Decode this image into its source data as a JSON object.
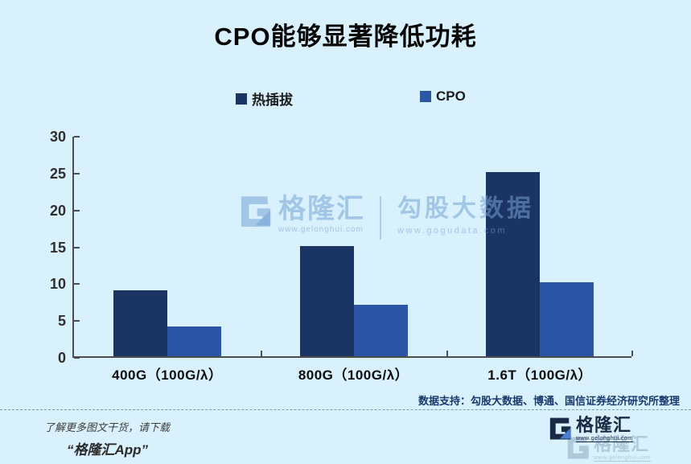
{
  "title": "CPO能够显著降低功耗",
  "chart_data": {
    "type": "bar",
    "title": "CPO能够显著降低功耗",
    "categories": [
      "400G（100G/λ）",
      "800G（100G/λ）",
      "1.6T（100G/λ）"
    ],
    "series": [
      {
        "name": "热插拔",
        "color": "#1a3464",
        "values": [
          9,
          15,
          25
        ]
      },
      {
        "name": "CPO",
        "color": "#2b56a5",
        "values": [
          4,
          7,
          10
        ]
      }
    ],
    "xlabel": "",
    "ylabel": "",
    "ylim": [
      0,
      30
    ],
    "yticks": [
      0,
      5,
      10,
      15,
      20,
      25,
      30
    ],
    "grid": false,
    "legend_position": "top"
  },
  "watermark": {
    "brand": "格隆汇",
    "brand_url": "www.gelonghui.com",
    "partner": "勾股大数据",
    "partner_url": "www.gogudata.com"
  },
  "source_note": "数据支持：勾股大数据、博通、国信证券经济研究所整理",
  "footer": {
    "promo_line1": "了解更多图文干货，请下载",
    "promo_line2": "“格隆汇App”",
    "logo_text": "格隆汇",
    "logo_url": "www.gelonghui.com"
  },
  "colors": {
    "background": "#d9f1fc",
    "axis": "#4d4d4d",
    "series_dark": "#1a3464",
    "series_light": "#2b56a5",
    "source_text": "#17396b",
    "logo_navy": "#1b2a44",
    "logo_accent": "#4a7fd4",
    "watermark": "rgba(116,163,211,0.55)"
  }
}
